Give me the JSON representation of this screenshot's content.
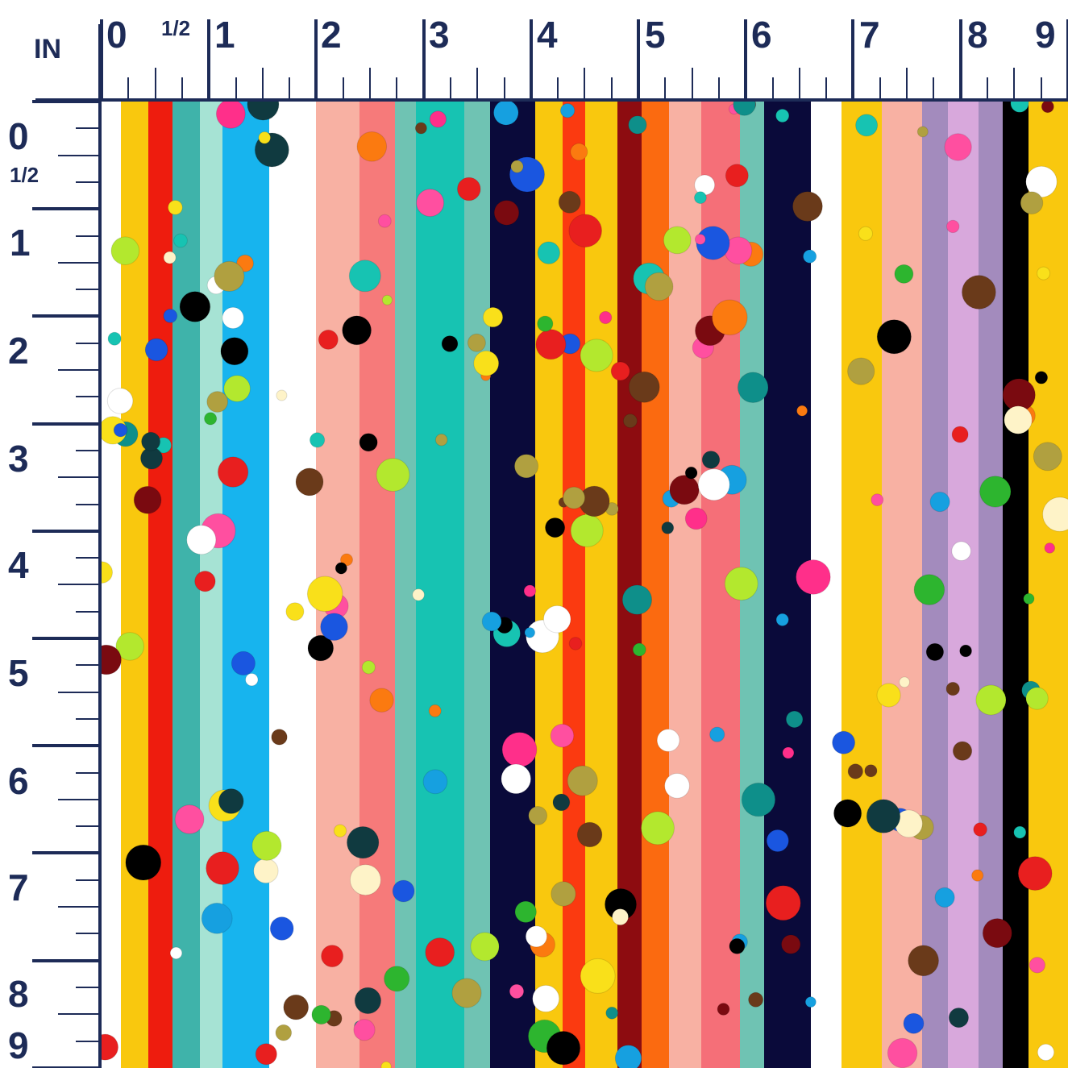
{
  "ruler": {
    "unit_label": "IN",
    "top_labels": [
      "0",
      "1/2",
      "1",
      "2",
      "3",
      "4",
      "5",
      "6",
      "7",
      "8",
      "9"
    ],
    "left_labels": [
      "0",
      "1/2",
      "1",
      "2",
      "3",
      "4",
      "5",
      "6",
      "7",
      "8",
      "9"
    ],
    "color": "#1d2b57"
  },
  "pattern": {
    "description_colors": {
      "yellow": "#f9c80e",
      "red": "#ee1c0e",
      "teal": "#3fb3aa",
      "mint": "#a6e3d4",
      "sky": "#17b4ee",
      "white": "#ffffff",
      "peach": "#f8b1a3",
      "salmon": "#f67a7a",
      "seafoam": "#6fc3b3",
      "turquoise": "#17c3b2",
      "navy": "#0a0a3a",
      "orange_red": "#fb3a10",
      "maroon": "#8d0c10",
      "orange": "#fb6a10",
      "coral": "#f56f78",
      "lavender": "#a38bbd",
      "lilac": "#d8a8dc",
      "black": "#000000"
    }
  }
}
